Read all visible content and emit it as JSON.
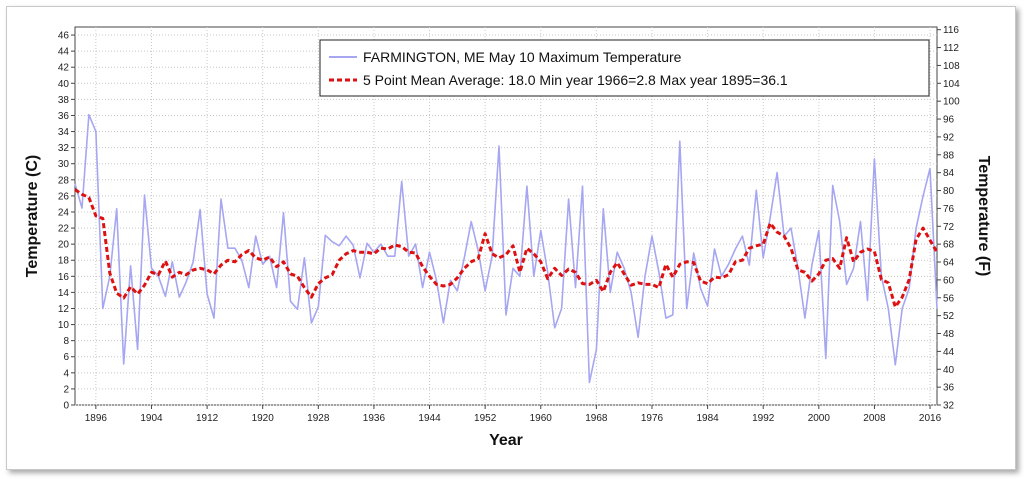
{
  "chart_data": {
    "type": "line",
    "xlabel": "Year",
    "ylabel_left": "Temperature (C)",
    "ylabel_right": "Temperature (F)",
    "xlim": [
      1893,
      2017
    ],
    "ylim": [
      0,
      47
    ],
    "ylim_right": [
      32,
      116.6
    ],
    "x_ticks": [
      1896,
      1904,
      1912,
      1920,
      1928,
      1936,
      1944,
      1952,
      1960,
      1968,
      1976,
      1984,
      1992,
      2000,
      2008,
      2016
    ],
    "y_ticks": [
      0,
      2,
      4,
      6,
      8,
      10,
      12,
      14,
      16,
      18,
      20,
      22,
      24,
      26,
      28,
      30,
      32,
      34,
      36,
      38,
      40,
      42,
      44,
      46
    ],
    "y_ticks_right": [
      32,
      36,
      40,
      44,
      48,
      52,
      56,
      60,
      64,
      68,
      72,
      76,
      80,
      84,
      88,
      92,
      96,
      100,
      104,
      108,
      112,
      116
    ],
    "grid": true,
    "legend_position": "top-right",
    "legend_entries": [
      "FARMINGTON, ME  May 10  Maximum Temperature",
      "5 Point Mean  Average: 18.0  Min year 1966=2.8  Max year 1895=36.1"
    ],
    "series": [
      {
        "name": "FARMINGTON, ME  May 10  Maximum Temperature",
        "color": "#a6a6f2",
        "style": "solid",
        "x": [
          1893,
          1894,
          1895,
          1896,
          1897,
          1898,
          1899,
          1900,
          1901,
          1902,
          1903,
          1904,
          1905,
          1906,
          1907,
          1908,
          1909,
          1910,
          1911,
          1912,
          1913,
          1914,
          1915,
          1916,
          1917,
          1918,
          1919,
          1920,
          1921,
          1922,
          1923,
          1924,
          1925,
          1926,
          1927,
          1928,
          1929,
          1930,
          1931,
          1932,
          1933,
          1934,
          1935,
          1936,
          1937,
          1938,
          1939,
          1940,
          1941,
          1942,
          1943,
          1944,
          1945,
          1946,
          1947,
          1948,
          1949,
          1950,
          1951,
          1952,
          1953,
          1954,
          1955,
          1956,
          1957,
          1958,
          1959,
          1960,
          1961,
          1962,
          1963,
          1964,
          1965,
          1966,
          1967,
          1968,
          1969,
          1970,
          1971,
          1972,
          1973,
          1974,
          1975,
          1976,
          1977,
          1978,
          1979,
          1980,
          1981,
          1982,
          1983,
          1984,
          1985,
          1986,
          1987,
          1988,
          1989,
          1990,
          1991,
          1992,
          1993,
          1994,
          1995,
          1996,
          1997,
          1998,
          1999,
          2000,
          2001,
          2002,
          2003,
          2004,
          2005,
          2006,
          2007,
          2008,
          2009,
          2010,
          2011,
          2012,
          2013,
          2014,
          2015,
          2016,
          2017
        ],
        "y": [
          27.5,
          24.5,
          36.1,
          34.0,
          12.0,
          16.0,
          24.4,
          5.1,
          17.3,
          6.9,
          26.1,
          17.0,
          16.0,
          13.5,
          17.8,
          13.4,
          15.3,
          17.8,
          24.3,
          13.8,
          10.8,
          25.6,
          19.5,
          19.5,
          18.0,
          14.6,
          21.0,
          17.5,
          18.5,
          14.6,
          23.9,
          12.9,
          11.9,
          18.3,
          10.2,
          12.2,
          21.1,
          20.3,
          19.8,
          21.0,
          19.9,
          15.8,
          20.1,
          19.0,
          20.0,
          18.5,
          18.5,
          27.8,
          18.5,
          20.0,
          14.6,
          19.0,
          15.5,
          10.2,
          15.5,
          14.2,
          18.3,
          22.8,
          19.2,
          14.2,
          18.5,
          32.2,
          11.2,
          17.0,
          16.0,
          27.2,
          16.0,
          21.7,
          16.5,
          9.6,
          12.0,
          25.6,
          14.6,
          27.2,
          2.8,
          6.9,
          24.4,
          14.0,
          19.0,
          17.0,
          14.0,
          8.4,
          16.0,
          21.0,
          16.5,
          10.8,
          11.2,
          32.8,
          12.0,
          18.9,
          14.5,
          12.3,
          19.4,
          16.0,
          17.5,
          19.4,
          21.0,
          17.4,
          26.7,
          18.3,
          23.3,
          28.9,
          21.0,
          22.0,
          17.0,
          10.8,
          17.4,
          21.7,
          5.8,
          27.3,
          22.8,
          15.0,
          17.0,
          22.8,
          13.0,
          30.6,
          16.0,
          12.0,
          5.0,
          12.0,
          14.5,
          22.0,
          26.0,
          29.4,
          12.0
        ]
      },
      {
        "name": "5 Point Mean  Average: 18.0  Min year 1966=2.8  Max year 1895=36.1",
        "color": "#dd1111",
        "style": "dashed",
        "x": [
          1893,
          1894,
          1895,
          1896,
          1897,
          1898,
          1899,
          1900,
          1901,
          1902,
          1903,
          1904,
          1905,
          1906,
          1907,
          1908,
          1909,
          1910,
          1911,
          1912,
          1913,
          1914,
          1915,
          1916,
          1917,
          1918,
          1919,
          1920,
          1921,
          1922,
          1923,
          1924,
          1925,
          1926,
          1927,
          1928,
          1929,
          1930,
          1931,
          1932,
          1933,
          1934,
          1935,
          1936,
          1937,
          1938,
          1939,
          1940,
          1941,
          1942,
          1943,
          1944,
          1945,
          1946,
          1947,
          1948,
          1949,
          1950,
          1951,
          1952,
          1953,
          1954,
          1955,
          1956,
          1957,
          1958,
          1959,
          1960,
          1961,
          1962,
          1963,
          1964,
          1965,
          1966,
          1967,
          1968,
          1969,
          1970,
          1971,
          1972,
          1973,
          1974,
          1975,
          1976,
          1977,
          1978,
          1979,
          1980,
          1981,
          1982,
          1983,
          1984,
          1985,
          1986,
          1987,
          1988,
          1989,
          1990,
          1991,
          1992,
          1993,
          1994,
          1995,
          1996,
          1997,
          1998,
          1999,
          2000,
          2001,
          2002,
          2003,
          2004,
          2005,
          2006,
          2007,
          2008,
          2009,
          2010,
          2011,
          2012,
          2013,
          2014,
          2015,
          2016,
          2017
        ],
        "y": [
          26.8,
          26.2,
          25.8,
          23.5,
          23.2,
          16.4,
          13.9,
          13.3,
          14.7,
          13.8,
          14.9,
          16.5,
          16.2,
          17.9,
          15.9,
          16.5,
          16.2,
          16.8,
          17.0,
          16.8,
          16.3,
          17.4,
          18.0,
          17.8,
          18.7,
          19.2,
          18.3,
          18.0,
          18.4,
          17.2,
          17.8,
          16.3,
          16.0,
          14.6,
          13.4,
          15.1,
          15.8,
          16.2,
          18.0,
          18.8,
          19.2,
          19.0,
          19.0,
          18.8,
          19.5,
          19.4,
          19.9,
          19.7,
          19.0,
          18.9,
          17.2,
          16.0,
          15.0,
          14.8,
          15.0,
          15.8,
          17.0,
          17.8,
          18.2,
          21.3,
          18.8,
          18.3,
          18.7,
          19.8,
          16.5,
          19.5,
          18.8,
          17.8,
          15.7,
          17.0,
          16.1,
          16.9,
          16.5,
          15.1,
          15.0,
          15.5,
          14.1,
          16.5,
          17.7,
          16.3,
          14.9,
          15.2,
          15.0,
          15.0,
          14.6,
          17.5,
          15.9,
          17.5,
          17.8,
          17.7,
          15.4,
          15.1,
          15.9,
          15.8,
          16.2,
          17.8,
          18.0,
          19.5,
          19.8,
          20.0,
          22.6,
          21.5,
          21.0,
          19.5,
          16.8,
          16.5,
          15.4,
          16.3,
          18.0,
          18.2,
          17.0,
          20.8,
          17.8,
          19.0,
          19.4,
          19.1,
          15.6,
          15.2,
          12.2,
          13.4,
          15.6,
          20.6,
          22.0,
          20.5,
          19.0
        ]
      }
    ]
  }
}
